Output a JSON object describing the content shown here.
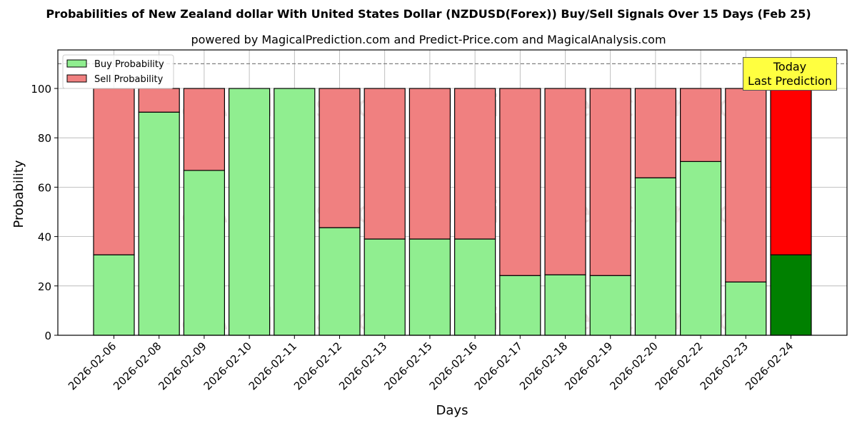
{
  "chart_data": {
    "type": "bar",
    "stacked": true,
    "title": "Probabilities of New Zealand dollar With United States Dollar (NZDUSD(Forex)) Buy/Sell Signals Over 15 Days (Feb 25)",
    "subtitle": "powered by MagicalPrediction.com and Predict-Price.com and MagicalAnalysis.com",
    "xlabel": "Days",
    "ylabel": "Probability",
    "ylim": [
      0,
      115
    ],
    "yticks": [
      0,
      20,
      40,
      60,
      80,
      100
    ],
    "grid": true,
    "reference_line": {
      "value": 110,
      "style": "dashed",
      "color": "#808080"
    },
    "legend": {
      "position": "upper left",
      "entries": [
        "Buy Probability",
        "Sell Probability"
      ]
    },
    "categories": [
      "2026-02-06",
      "2026-02-08",
      "2026-02-09",
      "2026-02-10",
      "2026-02-11",
      "2026-02-12",
      "2026-02-13",
      "2026-02-15",
      "2026-02-16",
      "2026-02-17",
      "2026-02-18",
      "2026-02-19",
      "2026-02-20",
      "2026-02-22",
      "2026-02-23",
      "2026-02-24"
    ],
    "series": [
      {
        "name": "Buy Probability",
        "color": "#90ee90",
        "values": [
          32.6,
          90.4,
          66.8,
          100,
          100,
          43.6,
          39.0,
          39.0,
          39.0,
          24.2,
          24.5,
          24.2,
          63.8,
          70.4,
          21.6,
          32.6
        ]
      },
      {
        "name": "Sell Probability",
        "color": "#f08080",
        "values": [
          67.4,
          9.6,
          33.2,
          0,
          0,
          56.4,
          61.0,
          61.0,
          61.0,
          75.8,
          75.5,
          75.8,
          36.2,
          29.6,
          78.4,
          67.4
        ]
      }
    ],
    "highlight": {
      "index": 15,
      "buy_color": "#008000",
      "sell_color": "#ff0000",
      "annotation": "Today\nLast Prediction"
    },
    "watermarks": [
      "MagicalAnalysis.com",
      "MagicalPrediction.com"
    ]
  },
  "annotation": {
    "line1": "Today",
    "line2": "Last Prediction"
  }
}
